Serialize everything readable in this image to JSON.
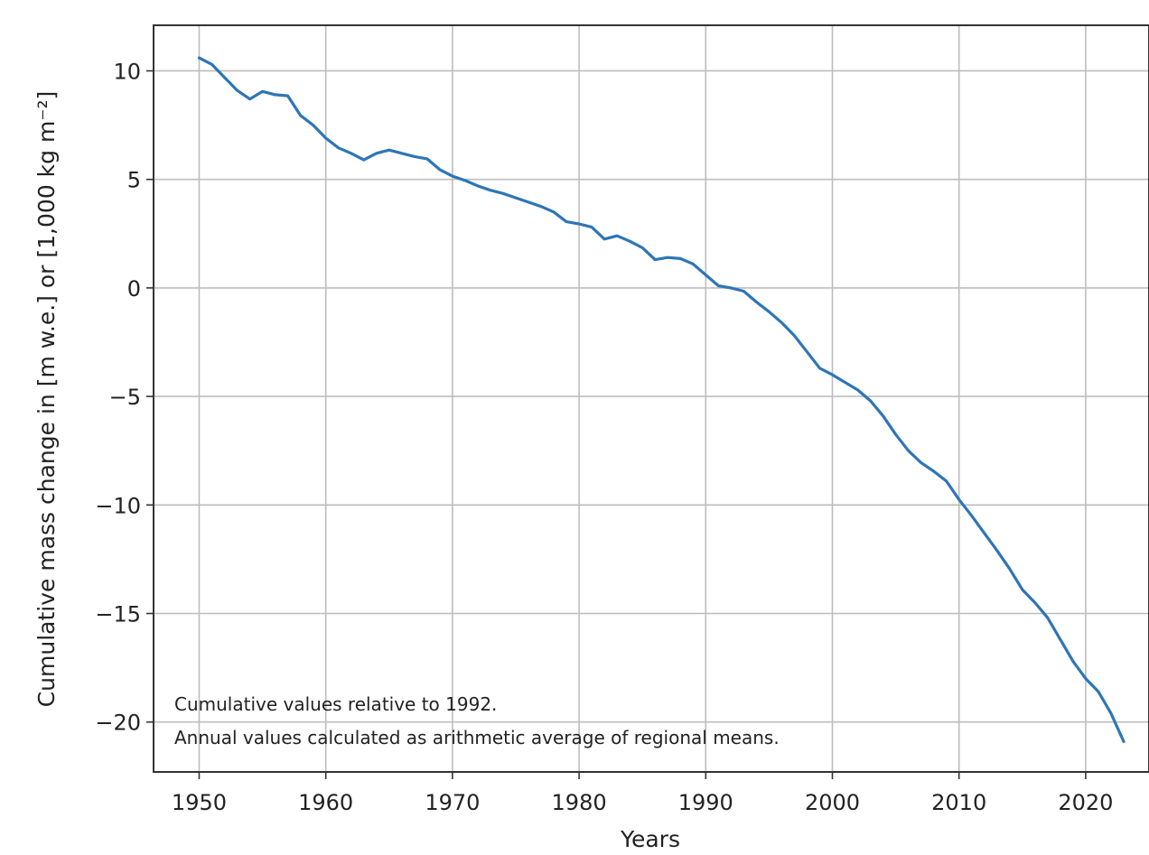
{
  "chart_data": {
    "type": "line",
    "xlabel": "Years",
    "ylabel": "Cumulative mass change in [m w.e.] or [1,000 kg m⁻²]",
    "xlim": [
      1946.4,
      2025
    ],
    "ylim": [
      -22.3,
      12.1
    ],
    "xticks": [
      1950,
      1960,
      1970,
      1980,
      1990,
      2000,
      2010,
      2020
    ],
    "yticks": [
      10,
      5,
      0,
      -5,
      -10,
      -15,
      -20
    ],
    "ytick_labels": [
      "10",
      "5",
      "0",
      "−5",
      "−10",
      "−15",
      "−20"
    ],
    "grid": true,
    "line_color": "#2e75b6",
    "annotations": [
      "Cumulative values relative to 1992.",
      "Annual values calculated as arithmetic average of regional means."
    ],
    "series": [
      {
        "x": [
          1950,
          1951,
          1952,
          1953,
          1954,
          1955,
          1956,
          1957,
          1958,
          1959,
          1960,
          1961,
          1962,
          1963,
          1964,
          1965,
          1966,
          1967,
          1968,
          1969,
          1970,
          1971,
          1972,
          1973,
          1974,
          1975,
          1976,
          1977,
          1978,
          1979,
          1980,
          1981,
          1982,
          1983,
          1984,
          1985,
          1986,
          1987,
          1988,
          1989,
          1990,
          1991,
          1992,
          1993,
          1994,
          1995,
          1996,
          1997,
          1998,
          1999,
          2000,
          2001,
          2002,
          2003,
          2004,
          2005,
          2006,
          2007,
          2008,
          2009,
          2010,
          2011,
          2012,
          2013,
          2014,
          2015,
          2016,
          2017,
          2018,
          2019,
          2020,
          2021,
          2022,
          2023
        ],
        "values": [
          10.6,
          10.3,
          9.7,
          9.1,
          8.7,
          9.05,
          8.9,
          8.85,
          7.95,
          7.5,
          6.9,
          6.45,
          6.2,
          5.9,
          6.2,
          6.35,
          6.2,
          6.05,
          5.95,
          5.45,
          5.15,
          4.95,
          4.7,
          4.5,
          4.35,
          4.15,
          3.95,
          3.75,
          3.5,
          3.05,
          2.95,
          2.8,
          2.25,
          2.4,
          2.15,
          1.85,
          1.3,
          1.4,
          1.35,
          1.1,
          0.6,
          0.1,
          0.0,
          -0.15,
          -0.65,
          -1.1,
          -1.6,
          -2.2,
          -2.95,
          -3.7,
          -4.0,
          -4.35,
          -4.7,
          -5.2,
          -5.9,
          -6.75,
          -7.5,
          -8.05,
          -8.45,
          -8.9,
          -9.75,
          -10.5,
          -11.3,
          -12.1,
          -12.95,
          -13.9,
          -14.5,
          -15.2,
          -16.2,
          -17.2,
          -18.0,
          -18.6,
          -19.6,
          -20.9
        ]
      }
    ]
  }
}
